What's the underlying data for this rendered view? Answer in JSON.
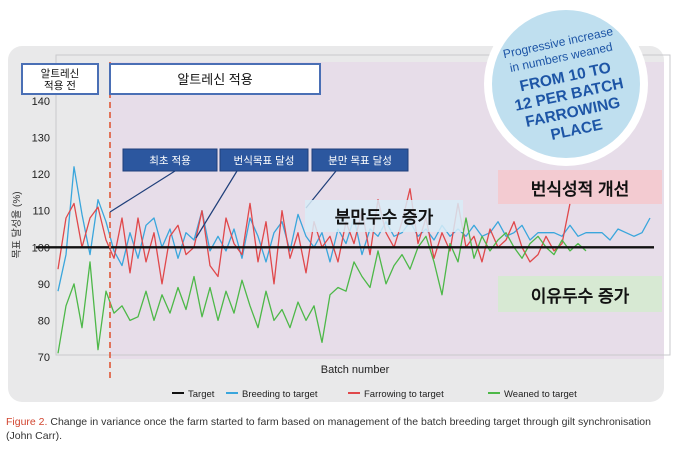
{
  "chart_data": {
    "type": "line",
    "xlabel": "Batch number",
    "ylabel": "목표 달성율 (%)",
    "ylim": [
      70,
      140
    ],
    "yticks": [
      70,
      80,
      90,
      100,
      110,
      120,
      130,
      140
    ],
    "xlim": [
      1,
      150
    ],
    "grid": false,
    "legend_position": "bottom",
    "reference_line": {
      "name": "Target",
      "value": 100,
      "color": "#111111"
    },
    "change_batch": 14,
    "series": [
      {
        "name": "Breeding to target",
        "color": "#3aa6dc",
        "x": [
          1,
          3,
          5,
          7,
          9,
          11,
          13,
          15,
          17,
          19,
          21,
          23,
          25,
          27,
          29,
          31,
          33,
          35,
          37,
          39,
          41,
          43,
          45,
          47,
          49,
          51,
          53,
          55,
          57,
          59,
          61,
          63,
          65,
          67,
          69,
          71,
          73,
          75,
          77,
          79,
          81,
          83,
          85,
          87,
          89,
          91,
          93,
          95,
          97,
          99,
          101,
          103,
          105,
          107,
          109,
          111,
          113,
          115,
          117,
          119,
          121,
          123,
          125,
          127,
          129,
          131,
          133,
          135,
          137,
          139,
          141,
          143,
          145,
          147,
          149
        ],
        "values": [
          88,
          98,
          122,
          109,
          98,
          113,
          107,
          99,
          95,
          104,
          97,
          106,
          108,
          100,
          105,
          97,
          104,
          102,
          110,
          99,
          103,
          99,
          105,
          97,
          108,
          103,
          96,
          104,
          107,
          99,
          109,
          103,
          100,
          104,
          96,
          105,
          101,
          108,
          98,
          105,
          103,
          107,
          103,
          104,
          107,
          103,
          105,
          102,
          106,
          103,
          105,
          103,
          106,
          103,
          104,
          107,
          103,
          104,
          106,
          102,
          104,
          104,
          104,
          103,
          106,
          103,
          104,
          104,
          104,
          102,
          105,
          104,
          103,
          104,
          108
        ]
      },
      {
        "name": "Farrowing to target",
        "color": "#e0484b",
        "x": [
          1,
          3,
          5,
          7,
          9,
          11,
          13,
          15,
          17,
          19,
          21,
          23,
          25,
          27,
          29,
          31,
          33,
          35,
          37,
          39,
          41,
          43,
          45,
          47,
          49,
          51,
          53,
          55,
          57,
          59,
          61,
          63,
          65,
          67,
          69,
          71,
          73,
          75,
          77,
          79,
          81,
          83,
          85,
          87,
          89,
          91,
          93,
          95,
          97,
          99,
          101,
          103,
          105,
          107,
          109,
          111,
          113,
          115,
          117,
          119,
          121,
          123,
          125,
          127,
          129
        ],
        "values": [
          94,
          108,
          112,
          100,
          108,
          111,
          102,
          97,
          108,
          93,
          108,
          96,
          104,
          90,
          103,
          106,
          98,
          100,
          110,
          95,
          92,
          108,
          101,
          98,
          112,
          96,
          107,
          90,
          110,
          97,
          104,
          93,
          107,
          100,
          103,
          96,
          107,
          101,
          110,
          98,
          113,
          104,
          100,
          107,
          116,
          101,
          108,
          97,
          104,
          99,
          112,
          100,
          103,
          96,
          105,
          100,
          102,
          107,
          100,
          96,
          98,
          103,
          99,
          101,
          112
        ]
      },
      {
        "name": "Weaned to target",
        "color": "#4db848",
        "x": [
          1,
          3,
          5,
          7,
          9,
          11,
          13,
          15,
          17,
          19,
          21,
          23,
          25,
          27,
          29,
          31,
          33,
          35,
          37,
          39,
          41,
          43,
          45,
          47,
          49,
          51,
          53,
          55,
          57,
          59,
          61,
          63,
          65,
          67,
          69,
          71,
          73,
          75,
          77,
          79,
          81,
          83,
          85,
          87,
          89,
          91,
          93,
          95,
          97,
          99,
          101,
          103,
          105,
          107,
          109,
          111,
          113,
          115,
          117,
          119,
          121,
          123,
          125,
          127,
          129,
          131,
          133
        ],
        "values": [
          71,
          84,
          90,
          78,
          96,
          72,
          88,
          82,
          84,
          80,
          81,
          88,
          80,
          87,
          82,
          89,
          83,
          92,
          81,
          89,
          80,
          88,
          82,
          91,
          84,
          78,
          88,
          80,
          83,
          78,
          85,
          80,
          84,
          74,
          87,
          89,
          88,
          96,
          92,
          89,
          99,
          90,
          95,
          98,
          94,
          100,
          103,
          96,
          87,
          101,
          96,
          108,
          97,
          103,
          99,
          102,
          104,
          100,
          97,
          101,
          103,
          100,
          98,
          102,
          99,
          101,
          99
        ]
      }
    ]
  },
  "annotations": {
    "before_box": "알트레신\n적용 전",
    "after_box": "알트레신 적용",
    "milestones": [
      "최초 적용",
      "번식목표 달성",
      "분만 목표 달성"
    ],
    "farrowing_label": "분만두수 증가",
    "breeding_label": "번식성적 개선",
    "weaned_label": "이유두수 증가",
    "badge": [
      "Progressive increase",
      "in numbers weaned",
      "FROM 10 TO",
      "12 PER BATCH",
      "FARROWING",
      "PLACE"
    ]
  },
  "legend": [
    "Target",
    "Breeding to target",
    "Farrowing to target",
    "Weaned to target"
  ],
  "caption": {
    "lead": "Figure 2.",
    "text": "Change in variance once the farm started to farm based on management of the batch breeding target through gilt synchronisation (John Carr)."
  }
}
